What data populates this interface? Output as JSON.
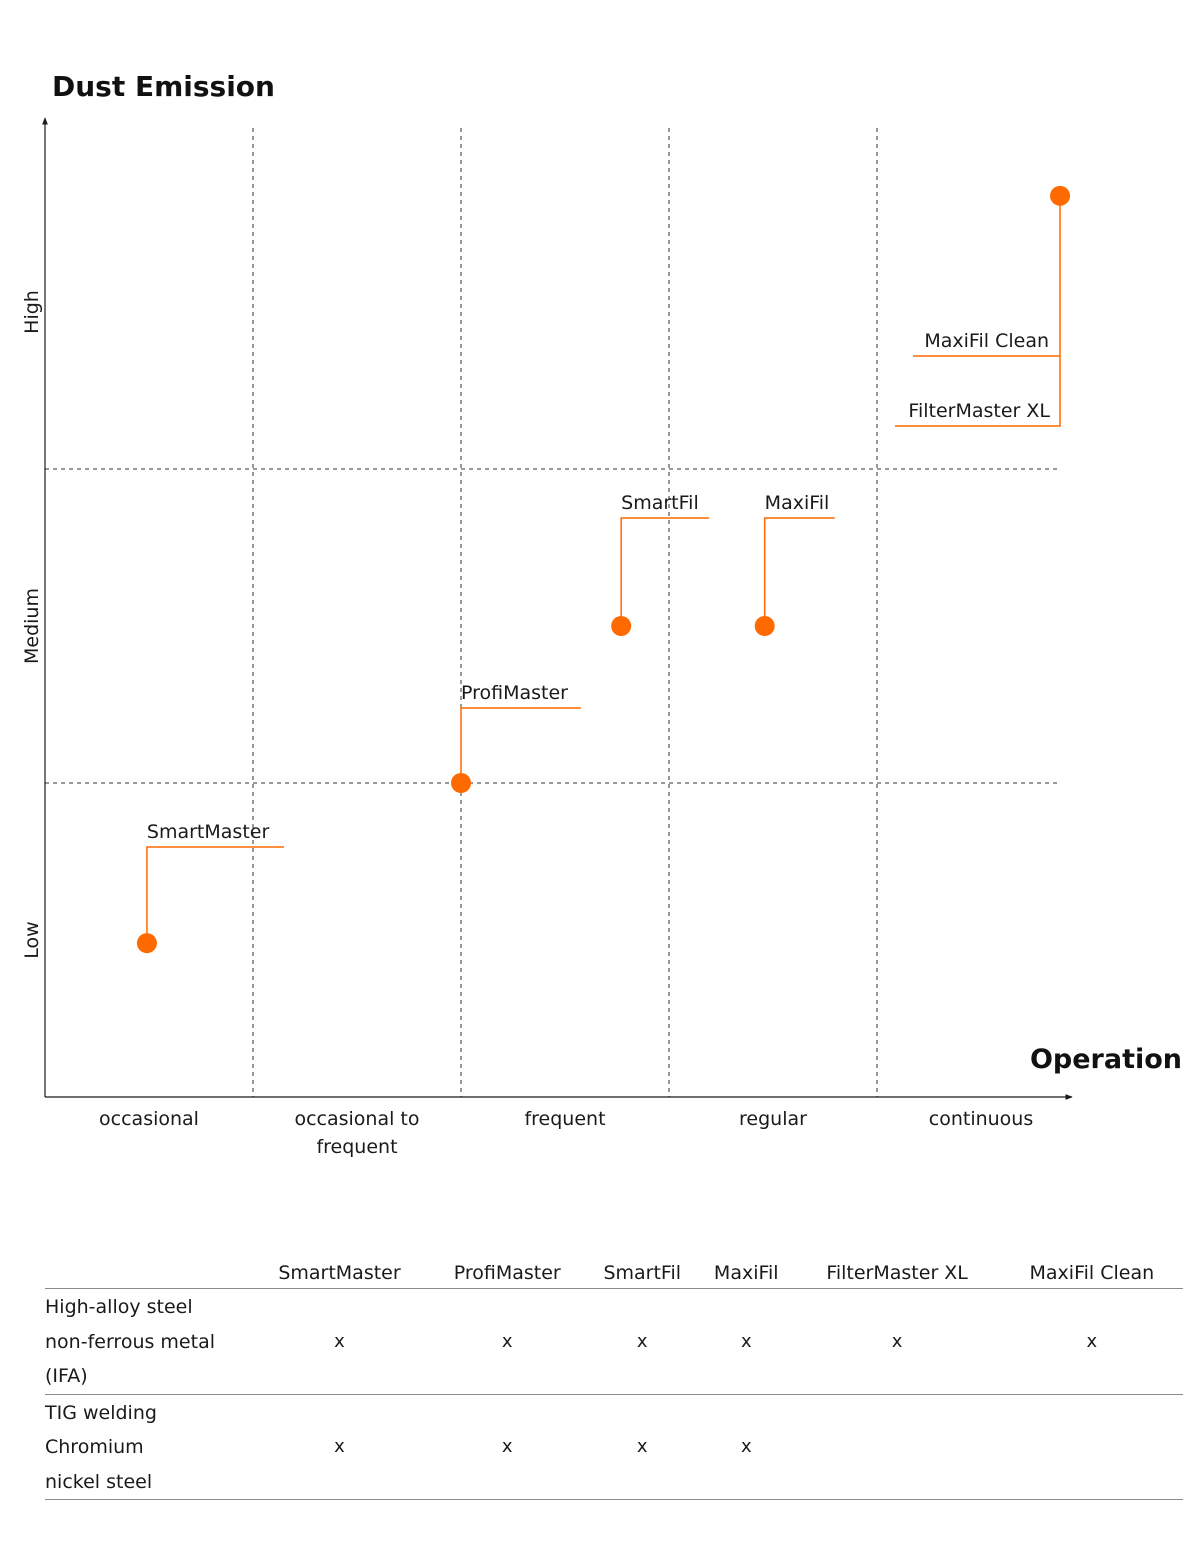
{
  "chart_data": {
    "type": "scatter",
    "title": "Dust Emission",
    "xlabel": "Operation",
    "x_categories": [
      "occasional",
      "occasional to frequent",
      "frequent",
      "regular",
      "continuous"
    ],
    "x_category_lines": [
      [
        "occasional"
      ],
      [
        "occasional to",
        "frequent"
      ],
      [
        "frequent"
      ],
      [
        "regular"
      ],
      [
        "continuous"
      ]
    ],
    "y_categories": [
      "Low",
      "Medium",
      "High"
    ],
    "xlim": [
      0,
      5
    ],
    "ylim": [
      0,
      3
    ],
    "grid": true,
    "accent_color": "#ff6a00",
    "points": [
      {
        "name": "SmartMaster",
        "x": 0.49,
        "y": 0.49
      },
      {
        "name": "ProfiMaster",
        "x": 2.0,
        "y": 1.0
      },
      {
        "name": "SmartFil",
        "x": 2.77,
        "y": 1.5
      },
      {
        "name": "MaxiFil",
        "x": 3.46,
        "y": 1.5
      },
      {
        "name": "MaxiFil Clean",
        "x": 4.88,
        "y": 2.87
      },
      {
        "name": "FilterMaster XL",
        "x": 4.88,
        "y": 2.87
      }
    ]
  },
  "table": {
    "columns": [
      "SmartMaster",
      "ProfiMaster",
      "SmartFil",
      "MaxiFil",
      "FilterMaster XL",
      "MaxiFil Clean"
    ],
    "rows": [
      {
        "label_lines": [
          "High-alloy steel",
          "non-ferrous metal",
          "(IFA)"
        ],
        "marks": [
          "x",
          "x",
          "x",
          "x",
          "x",
          "x"
        ]
      },
      {
        "label_lines": [
          "TIG welding",
          "Chromium",
          "nickel steel"
        ],
        "marks": [
          "x",
          "x",
          "x",
          "x",
          "",
          ""
        ]
      }
    ]
  }
}
